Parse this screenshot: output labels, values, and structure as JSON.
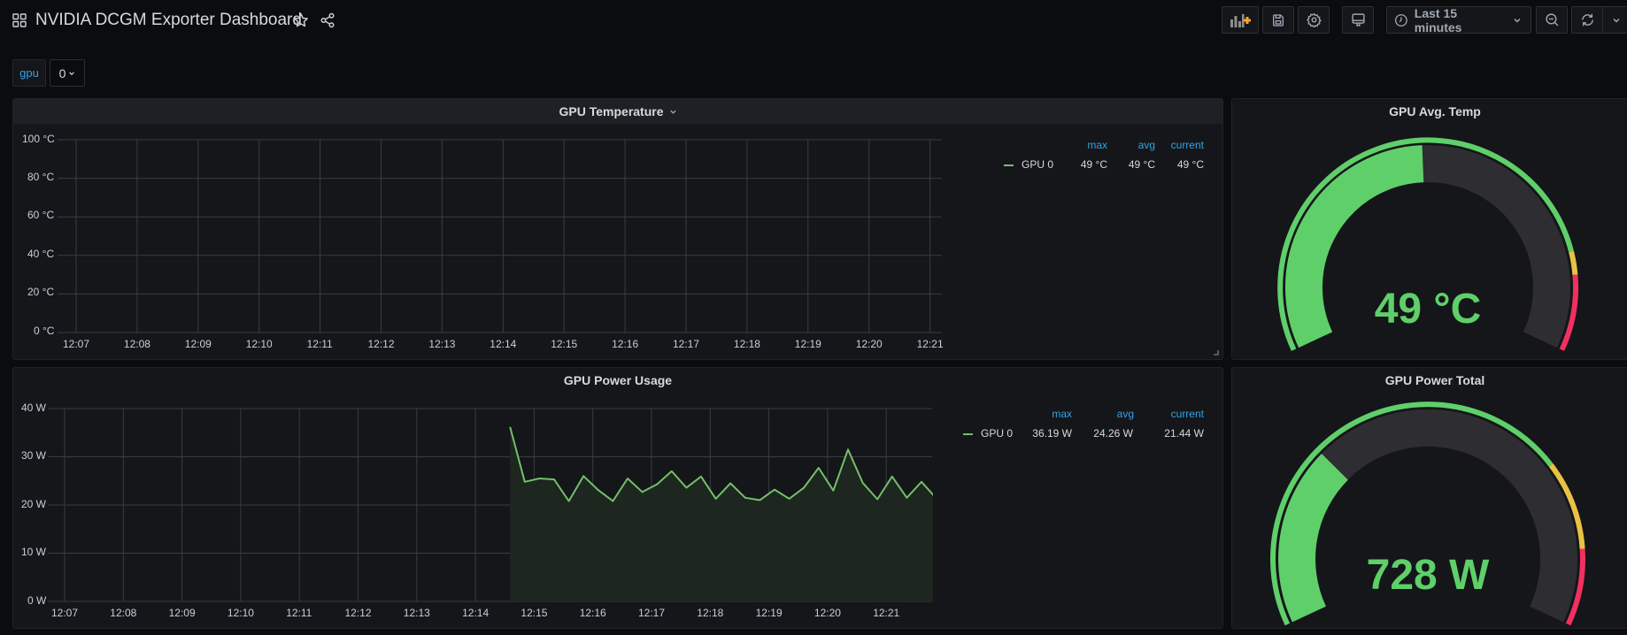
{
  "header": {
    "title": "NVIDIA DCGM Exporter Dashboard",
    "icons": [
      "dashboard-grid-icon",
      "star-icon",
      "share-icon"
    ],
    "toolbar": {
      "add_panel": "add-panel-icon",
      "save": "save-icon",
      "settings": "gear-icon",
      "tv_mode": "monitor-icon",
      "time_range": "Last 15 minutes",
      "zoom_out": "zoom-out-icon",
      "refresh": "refresh-icon"
    }
  },
  "variables": {
    "name": "gpu",
    "value": "0"
  },
  "colors": {
    "background": "#0b0c0e",
    "panel": "#141619",
    "series_green": "#73bf69",
    "gauge_green": "#5fcf6a",
    "gauge_yellow": "#e9c245",
    "gauge_red": "#f2305f",
    "legend_header": "#33a2e5"
  },
  "panels": {
    "temperature": {
      "title": "GPU Temperature",
      "legend": {
        "headers": [
          "max",
          "avg",
          "current"
        ],
        "series": [
          {
            "name": "GPU 0",
            "max": "49 °C",
            "avg": "49 °C",
            "current": "49 °C"
          }
        ]
      }
    },
    "avg_temp": {
      "title": "GPU Avg. Temp",
      "value": "49 °C"
    },
    "power_usage": {
      "title": "GPU Power Usage",
      "legend": {
        "headers": [
          "max",
          "avg",
          "current"
        ],
        "series": [
          {
            "name": "GPU 0",
            "max": "36.19 W",
            "avg": "24.26 W",
            "current": "21.44 W"
          }
        ]
      }
    },
    "power_total": {
      "title": "GPU Power Total",
      "value": "728 W"
    }
  },
  "chart_data": [
    {
      "type": "line",
      "title": "GPU Temperature",
      "xlabel": "",
      "ylabel": "",
      "x_ticks": [
        "12:07",
        "12:08",
        "12:09",
        "12:10",
        "12:11",
        "12:12",
        "12:13",
        "12:14",
        "12:15",
        "12:16",
        "12:17",
        "12:18",
        "12:19",
        "12:20",
        "12:21"
      ],
      "y_ticks": [
        "0 °C",
        "20 °C",
        "40 °C",
        "60 °C",
        "80 °C",
        "100 °C"
      ],
      "ylim": [
        0,
        100
      ],
      "grid": true,
      "legend_position": "right",
      "series": [
        {
          "name": "GPU 0",
          "values": []
        }
      ]
    },
    {
      "type": "area",
      "title": "GPU Power Usage",
      "xlabel": "",
      "ylabel": "",
      "x_ticks": [
        "12:07",
        "12:08",
        "12:09",
        "12:10",
        "12:11",
        "12:12",
        "12:13",
        "12:14",
        "12:15",
        "12:16",
        "12:17",
        "12:18",
        "12:19",
        "12:20",
        "12:21"
      ],
      "y_ticks": [
        "0 W",
        "10 W",
        "20 W",
        "30 W",
        "40 W"
      ],
      "ylim": [
        0,
        40
      ],
      "grid": true,
      "legend_position": "right",
      "x": [
        "12:14:15",
        "12:14:30",
        "12:14:45",
        "12:15:00",
        "12:15:15",
        "12:15:30",
        "12:15:45",
        "12:16:00",
        "12:16:15",
        "12:16:30",
        "12:16:45",
        "12:17:00",
        "12:17:15",
        "12:17:30",
        "12:17:45",
        "12:18:00",
        "12:18:15",
        "12:18:30",
        "12:18:45",
        "12:19:00",
        "12:19:15",
        "12:19:30",
        "12:19:45",
        "12:20:00",
        "12:20:15",
        "12:20:30",
        "12:20:45",
        "12:21:00",
        "12:21:15",
        "12:21:30"
      ],
      "series": [
        {
          "name": "GPU 0",
          "values": [
            36.2,
            24.8,
            25.5,
            25.3,
            20.8,
            26.0,
            23.1,
            20.8,
            25.5,
            22.7,
            24.3,
            27.0,
            23.6,
            25.9,
            21.3,
            24.5,
            21.5,
            21.0,
            23.2,
            21.3,
            23.6,
            27.7,
            23.0,
            31.5,
            24.6,
            21.2,
            25.9,
            21.5,
            24.8,
            21.4
          ]
        }
      ]
    },
    {
      "type": "gauge",
      "title": "GPU Avg. Temp",
      "value": 49,
      "unit": "°C",
      "range": [
        0,
        100
      ],
      "thresholds": [
        {
          "from": 0,
          "color": "green"
        },
        {
          "from": 83,
          "color": "yellow"
        },
        {
          "from": 87,
          "color": "red"
        }
      ]
    },
    {
      "type": "gauge",
      "title": "GPU Power Total",
      "value": 728,
      "unit": "W",
      "range": [
        0,
        2400
      ],
      "thresholds": [
        {
          "from": 0,
          "color": "green"
        },
        {
          "from": 1750,
          "color": "yellow"
        },
        {
          "from": 2100,
          "color": "red"
        }
      ]
    }
  ]
}
